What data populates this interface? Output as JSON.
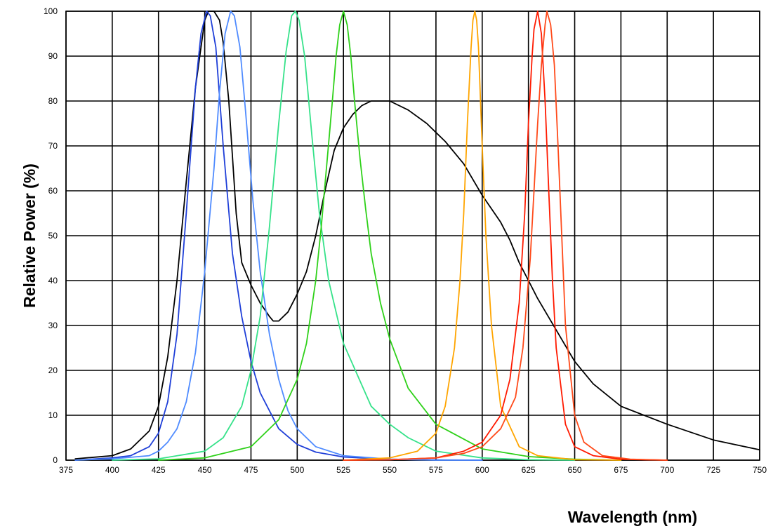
{
  "chart_data": {
    "type": "line",
    "title": "",
    "xlabel": "Wavelength (nm)",
    "ylabel": "Relative Power (%)",
    "xlim": [
      375,
      750
    ],
    "ylim": [
      0,
      100
    ],
    "xticks": [
      375,
      400,
      425,
      450,
      475,
      500,
      525,
      550,
      575,
      600,
      625,
      650,
      675,
      700,
      725,
      750
    ],
    "yticks": [
      0,
      10,
      20,
      30,
      40,
      50,
      60,
      70,
      80,
      90,
      100
    ],
    "grid": true,
    "legend": "none",
    "series": [
      {
        "color": "#000000",
        "x": [
          380,
          400,
          410,
          420,
          425,
          430,
          435,
          440,
          445,
          450,
          452,
          455,
          458,
          460,
          463,
          467,
          470,
          475,
          480,
          485,
          487,
          490,
          495,
          500,
          505,
          510,
          515,
          520,
          525,
          530,
          535,
          540,
          545,
          550,
          560,
          570,
          575,
          580,
          590,
          600,
          605,
          610,
          615,
          620,
          625,
          630,
          640,
          650,
          660,
          675,
          700,
          725,
          750
        ],
        "y": [
          0.3,
          1,
          2.5,
          6.5,
          12,
          23,
          40,
          62,
          83,
          98,
          100,
          100,
          98,
          93,
          80,
          55,
          44,
          39,
          35,
          32,
          31,
          31,
          33,
          37,
          42,
          50,
          60,
          69,
          74,
          77,
          79,
          80,
          80,
          80,
          78,
          75,
          73,
          71,
          66,
          59,
          56,
          53,
          49,
          44,
          40,
          36,
          29,
          22,
          17,
          12,
          8,
          4.5,
          2.3
        ]
      },
      {
        "color": "#1f3fd8",
        "x": [
          380,
          400,
          410,
          420,
          425,
          430,
          435,
          440,
          445,
          448,
          451,
          453,
          456,
          460,
          465,
          470,
          475,
          480,
          490,
          500,
          510,
          525,
          550,
          575,
          600
        ],
        "y": [
          0,
          0.5,
          1,
          3,
          6,
          13,
          28,
          55,
          83,
          95,
          100,
          99,
          92,
          70,
          46,
          32,
          22,
          15,
          7,
          3.5,
          1.8,
          0.7,
          0.2,
          0.05,
          0
        ]
      },
      {
        "color": "#4f8bff",
        "x": [
          380,
          400,
          420,
          425,
          430,
          435,
          440,
          445,
          450,
          455,
          458,
          461,
          464,
          466,
          469,
          472,
          476,
          480,
          485,
          490,
          495,
          500,
          510,
          525,
          550,
          575,
          600
        ],
        "y": [
          0,
          0.3,
          1,
          2,
          4,
          7,
          13,
          24,
          42,
          65,
          82,
          95,
          100,
          99,
          92,
          78,
          58,
          42,
          28,
          18,
          11,
          7,
          3,
          1,
          0.2,
          0,
          0
        ]
      },
      {
        "color": "#36e28a",
        "x": [
          400,
          425,
          450,
          460,
          470,
          475,
          480,
          485,
          490,
          494,
          497,
          499,
          501,
          504,
          508,
          512,
          517,
          525,
          540,
          550,
          560,
          575,
          600,
          625,
          650
        ],
        "y": [
          0,
          0.3,
          2,
          5,
          12,
          20,
          32,
          52,
          75,
          91,
          99,
          100,
          98,
          90,
          72,
          55,
          40,
          26,
          12,
          8,
          5,
          2,
          0.5,
          0.1,
          0
        ]
      },
      {
        "color": "#2fd11a",
        "x": [
          425,
          450,
          475,
          490,
          500,
          505,
          510,
          513,
          516,
          519,
          521,
          523,
          525,
          527,
          529,
          531,
          534,
          537,
          540,
          545,
          550,
          560,
          575,
          600,
          625,
          650,
          675
        ],
        "y": [
          0,
          0.5,
          3,
          9,
          18,
          26,
          40,
          52,
          66,
          80,
          90,
          97,
          100,
          97,
          90,
          80,
          67,
          56,
          46,
          35,
          27,
          16,
          8,
          2.5,
          0.8,
          0.2,
          0
        ]
      },
      {
        "color": "#ffa500",
        "x": [
          525,
          550,
          565,
          575,
          580,
          585,
          588,
          590,
          592,
          594,
          595,
          596,
          597,
          598,
          600,
          602,
          605,
          610,
          620,
          630,
          650,
          675
        ],
        "y": [
          0,
          0.5,
          2,
          6,
          12,
          25,
          40,
          55,
          75,
          92,
          98,
          100,
          98,
          92,
          70,
          50,
          30,
          12,
          3,
          1,
          0.1,
          0
        ]
      },
      {
        "color": "#ff1a00",
        "x": [
          525,
          550,
          575,
          590,
          600,
          610,
          615,
          620,
          623,
          625,
          627,
          628,
          630,
          632,
          634,
          636,
          637,
          638,
          640,
          645,
          650,
          660,
          675,
          700
        ],
        "y": [
          0,
          0.1,
          0.5,
          2,
          4,
          10,
          18,
          35,
          55,
          75,
          90,
          96,
          100,
          95,
          80,
          60,
          50,
          40,
          25,
          8,
          3,
          1,
          0.2,
          0
        ]
      },
      {
        "color": "#ff4a1a",
        "x": [
          525,
          550,
          575,
          590,
          600,
          610,
          618,
          622,
          626,
          628,
          630,
          632,
          634,
          635,
          637,
          639,
          641,
          643,
          645,
          650,
          655,
          665,
          680,
          700
        ],
        "y": [
          0,
          0.1,
          0.5,
          1.5,
          3,
          7,
          14,
          25,
          45,
          60,
          75,
          88,
          97,
          100,
          97,
          88,
          70,
          50,
          30,
          10,
          4,
          1,
          0.2,
          0
        ]
      }
    ]
  }
}
